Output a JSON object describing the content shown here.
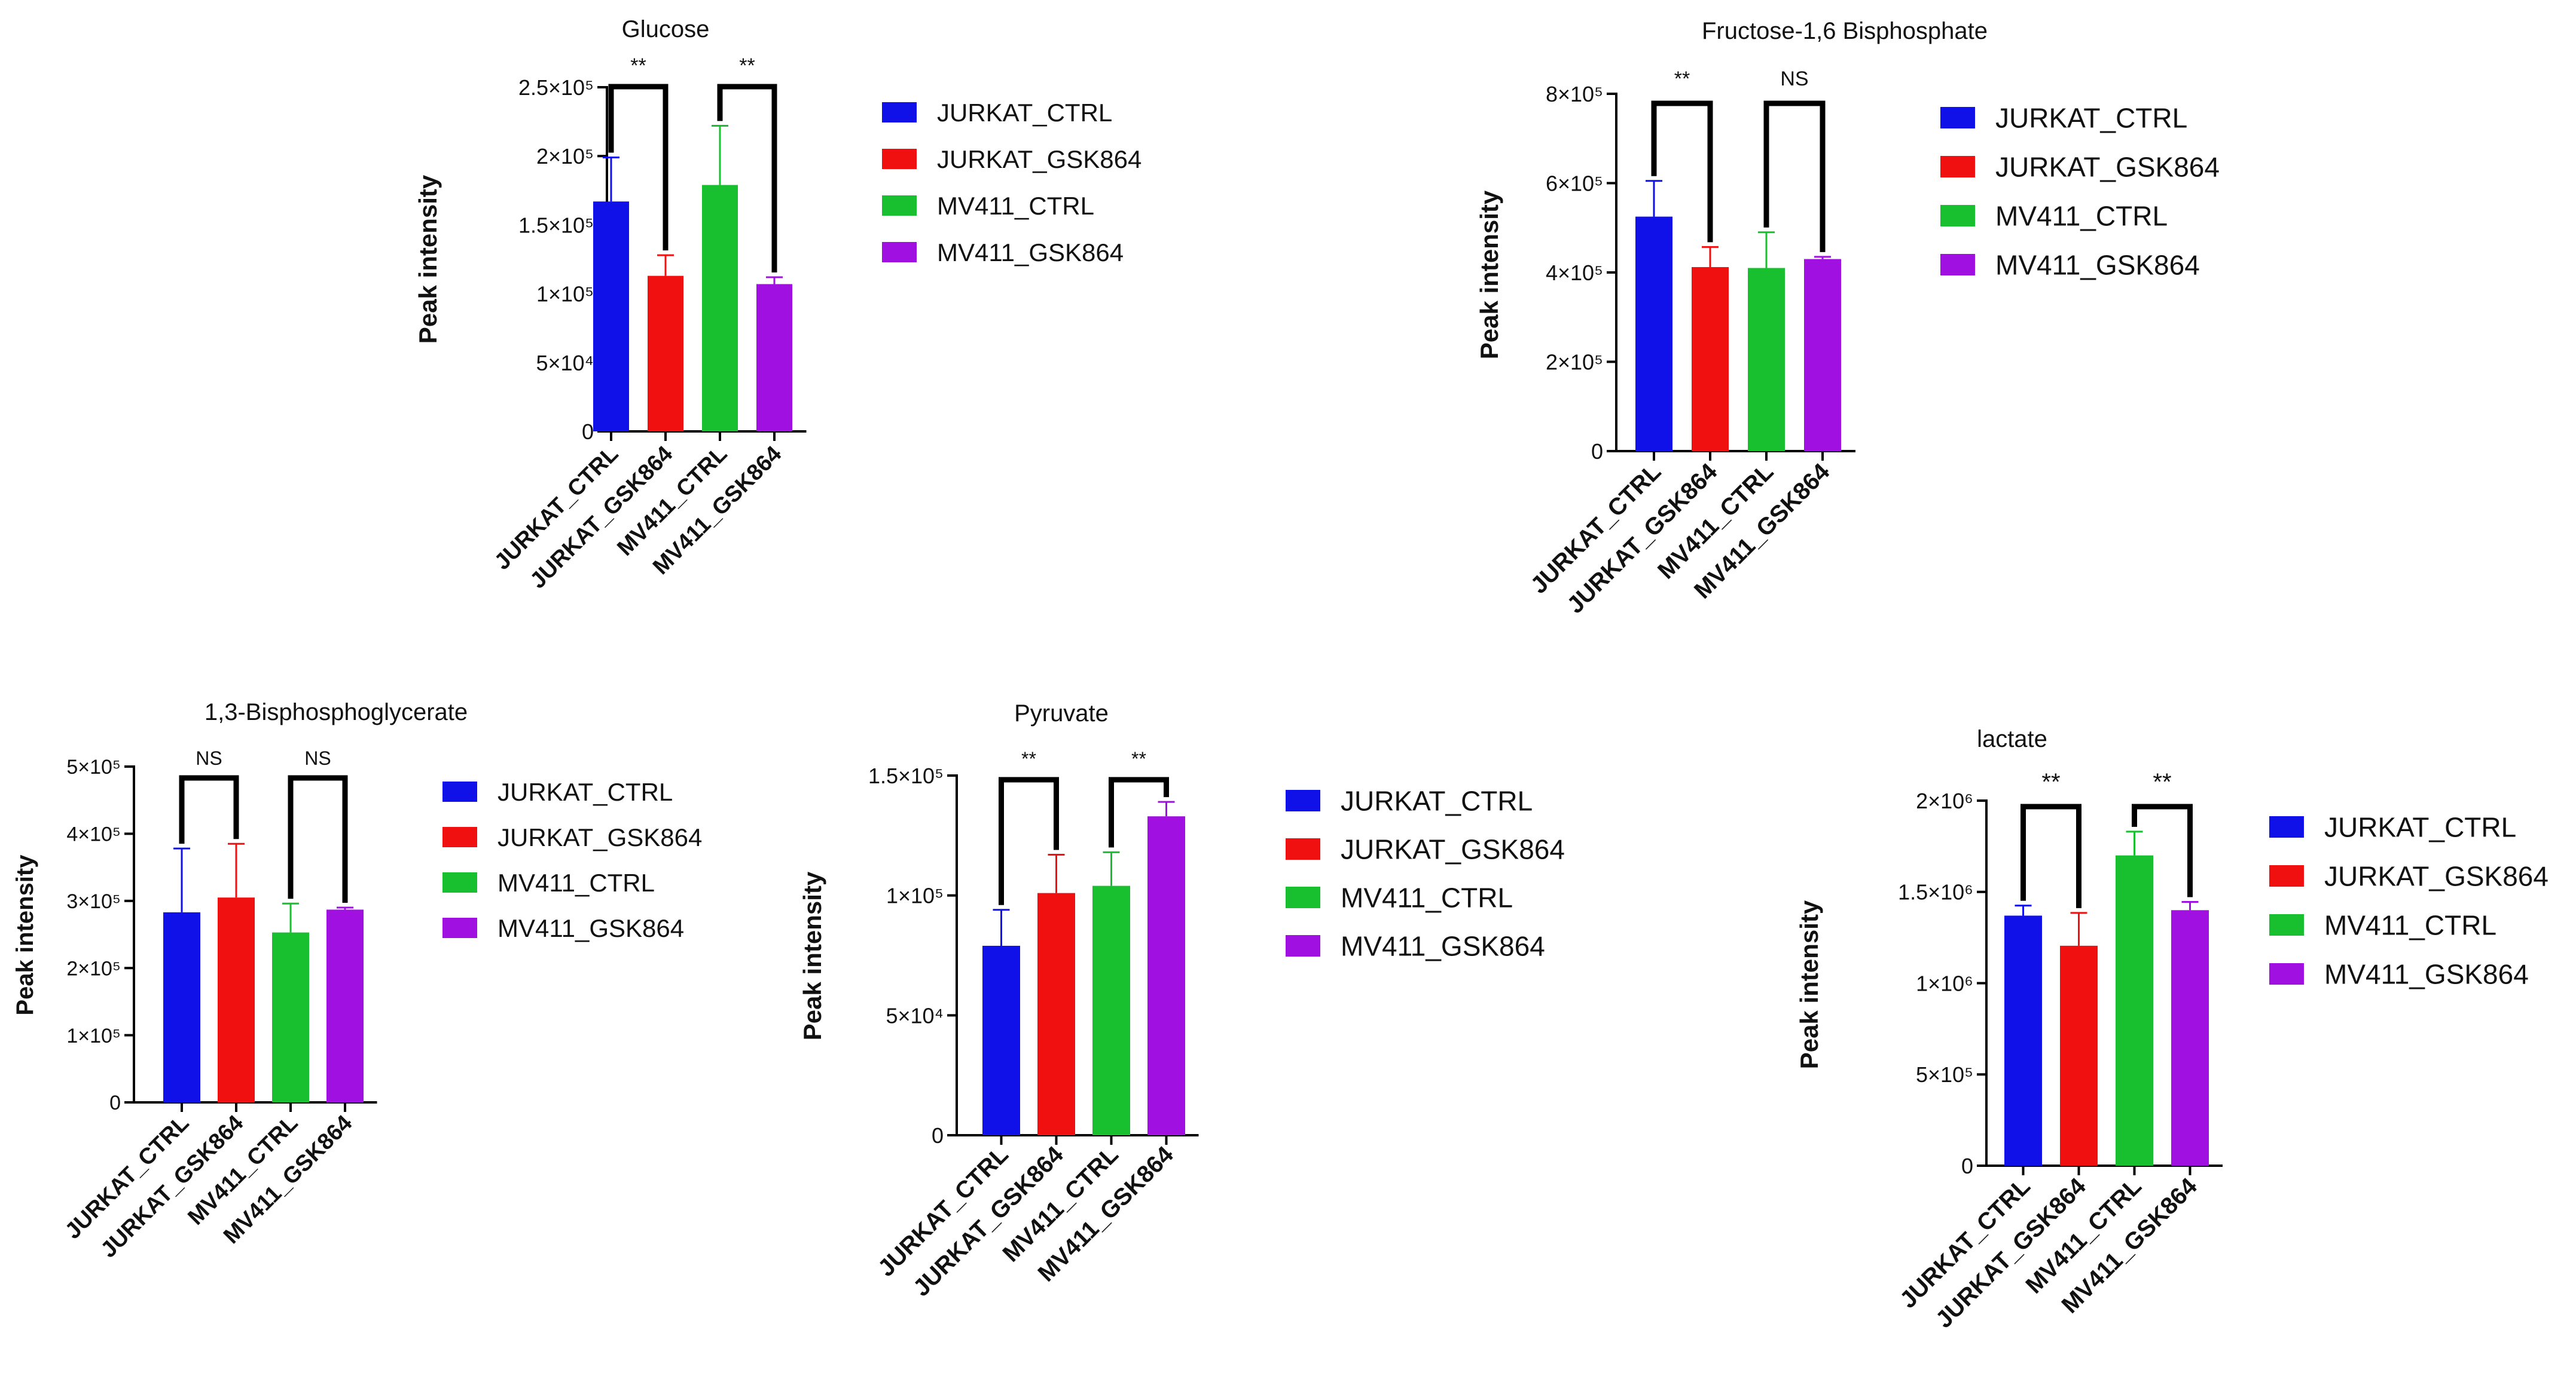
{
  "colors": {
    "JURKAT_CTRL": "#1010e8",
    "JURKAT_GSK864": "#f01010",
    "MV411_CTRL": "#18c030",
    "MV411_GSK864": "#a010e0",
    "axis": "#000000"
  },
  "chart_data": [
    {
      "type": "bar",
      "title": "Glucose",
      "ylabel": "Peak intensity",
      "xlabel": "",
      "ylim": [
        0,
        250000
      ],
      "yticks": [
        0,
        50000,
        100000,
        150000,
        200000,
        250000
      ],
      "ytick_labels": [
        "0",
        "5×10⁴",
        "1×10⁵",
        "1.5×10⁵",
        "2×10⁵",
        "2.5×10⁵"
      ],
      "categories": [
        "JURKAT_CTRL",
        "JURKAT_GSK864",
        "MV411_CTRL",
        "MV411_GSK864"
      ],
      "values": [
        167000,
        113000,
        179000,
        107000
      ],
      "errors": [
        32000,
        15000,
        43000,
        5000
      ],
      "legend": [
        "JURKAT_CTRL",
        "JURKAT_GSK864",
        "MV411_CTRL",
        "MV411_GSK864"
      ],
      "significance": [
        {
          "pair": [
            0,
            1
          ],
          "label": "**"
        },
        {
          "pair": [
            2,
            3
          ],
          "label": "**"
        }
      ]
    },
    {
      "type": "bar",
      "title": "Fructose-1,6 Bisphosphate",
      "ylabel": "Peak intensity",
      "xlabel": "",
      "ylim": [
        0,
        800000
      ],
      "yticks": [
        0,
        200000,
        400000,
        600000,
        800000
      ],
      "ytick_labels": [
        "0",
        "2×10⁵",
        "4×10⁵",
        "6×10⁵",
        "8×10⁵"
      ],
      "categories": [
        "JURKAT_CTRL",
        "JURKAT_GSK864",
        "MV411_CTRL",
        "MV411_GSK864"
      ],
      "values": [
        525000,
        412000,
        410000,
        430000
      ],
      "errors": [
        80000,
        45000,
        80000,
        5000
      ],
      "legend": [
        "JURKAT_CTRL",
        "JURKAT_GSK864",
        "MV411_CTRL",
        "MV411_GSK864"
      ],
      "significance": [
        {
          "pair": [
            0,
            1
          ],
          "label": "**"
        },
        {
          "pair": [
            2,
            3
          ],
          "label": "NS"
        }
      ]
    },
    {
      "type": "bar",
      "title": "1,3-Bisphosphoglycerate",
      "ylabel": "Peak intensity",
      "xlabel": "",
      "ylim": [
        0,
        500000
      ],
      "yticks": [
        0,
        100000,
        200000,
        300000,
        400000,
        500000
      ],
      "ytick_labels": [
        "0",
        "1×10⁵",
        "2×10⁵",
        "3×10⁵",
        "4×10⁵",
        "5×10⁵"
      ],
      "categories": [
        "JURKAT_CTRL",
        "JURKAT_GSK864",
        "MV411_CTRL",
        "MV411_GSK864"
      ],
      "values": [
        283000,
        305000,
        253000,
        287000
      ],
      "errors": [
        95000,
        80000,
        43000,
        3000
      ],
      "legend": [
        "JURKAT_CTRL",
        "JURKAT_GSK864",
        "MV411_CTRL",
        "MV411_GSK864"
      ],
      "significance": [
        {
          "pair": [
            0,
            1
          ],
          "label": "NS"
        },
        {
          "pair": [
            2,
            3
          ],
          "label": "NS"
        }
      ]
    },
    {
      "type": "bar",
      "title": "Pyruvate",
      "ylabel": "Peak intensity",
      "xlabel": "",
      "ylim": [
        0,
        150000
      ],
      "yticks": [
        0,
        50000,
        100000,
        150000
      ],
      "ytick_labels": [
        "0",
        "5×10⁴",
        "1×10⁵",
        "1.5×10⁵"
      ],
      "categories": [
        "JURKAT_CTRL",
        "JURKAT_GSK864",
        "MV411_CTRL",
        "MV411_GSK864"
      ],
      "values": [
        79000,
        101000,
        104000,
        133000
      ],
      "errors": [
        15000,
        16000,
        14000,
        6000
      ],
      "legend": [
        "JURKAT_CTRL",
        "JURKAT_GSK864",
        "MV411_CTRL",
        "MV411_GSK864"
      ],
      "significance": [
        {
          "pair": [
            0,
            1
          ],
          "label": "**"
        },
        {
          "pair": [
            2,
            3
          ],
          "label": "**"
        }
      ]
    },
    {
      "type": "bar",
      "title": "lactate",
      "ylabel": "Peak intensity",
      "xlabel": "",
      "ylim": [
        0,
        2000000
      ],
      "yticks": [
        0,
        500000,
        1000000,
        1500000,
        2000000
      ],
      "ytick_labels": [
        "0",
        "5×10⁵",
        "1×10⁶",
        "1.5×10⁶",
        "2×10⁶"
      ],
      "categories": [
        "JURKAT_CTRL",
        "JURKAT_GSK864",
        "MV411_CTRL",
        "MV411_GSK864"
      ],
      "values": [
        1370000,
        1205000,
        1700000,
        1400000
      ],
      "errors": [
        55000,
        180000,
        130000,
        45000
      ],
      "legend": [
        "JURKAT_CTRL",
        "JURKAT_GSK864",
        "MV411_CTRL",
        "MV411_GSK864"
      ],
      "significance": [
        {
          "pair": [
            0,
            1
          ],
          "label": "**"
        },
        {
          "pair": [
            2,
            3
          ],
          "label": "**"
        }
      ]
    }
  ]
}
